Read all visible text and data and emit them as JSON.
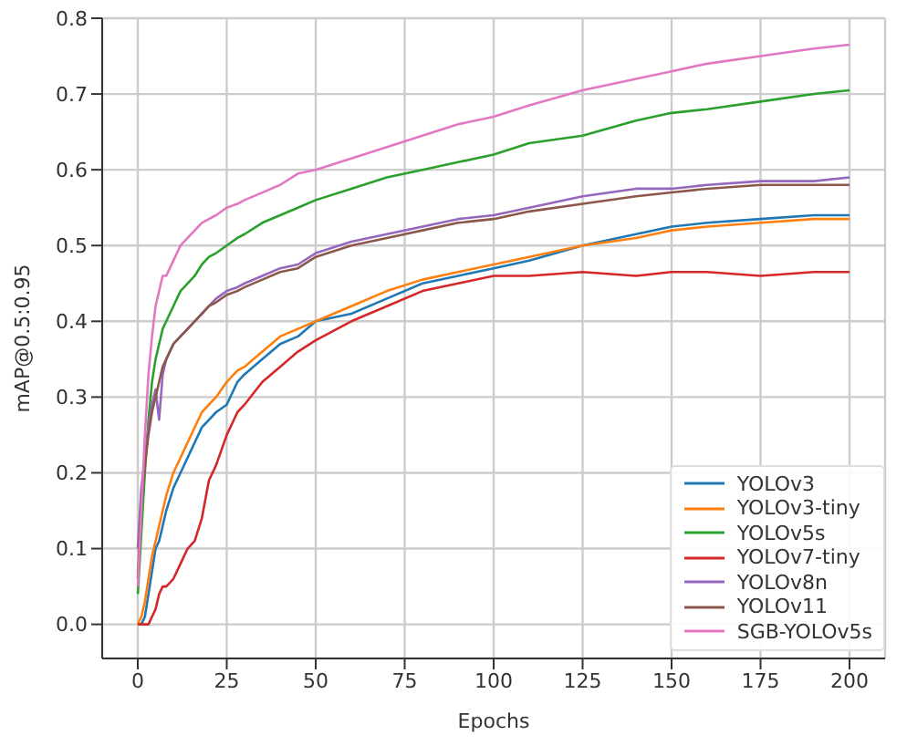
{
  "chart_data": {
    "type": "line",
    "xlabel": "Epochs",
    "ylabel": "mAP@0.5:0.95",
    "x": [
      0,
      1,
      2,
      3,
      4,
      5,
      6,
      7,
      8,
      10,
      12,
      14,
      16,
      18,
      20,
      22,
      25,
      28,
      30,
      35,
      40,
      45,
      50,
      60,
      70,
      80,
      90,
      100,
      110,
      125,
      140,
      150,
      160,
      175,
      190,
      200
    ],
    "series": [
      {
        "name": "YOLOv3",
        "color": "#1f77b4",
        "values": [
          0.0,
          0.0,
          0.01,
          0.04,
          0.07,
          0.1,
          0.11,
          0.13,
          0.15,
          0.18,
          0.2,
          0.22,
          0.24,
          0.26,
          0.27,
          0.28,
          0.29,
          0.32,
          0.33,
          0.35,
          0.37,
          0.38,
          0.4,
          0.41,
          0.43,
          0.45,
          0.46,
          0.47,
          0.48,
          0.5,
          0.515,
          0.525,
          0.53,
          0.535,
          0.54,
          0.54
        ]
      },
      {
        "name": "YOLOv3-tiny",
        "color": "#ff7f0e",
        "values": [
          0.0,
          0.01,
          0.03,
          0.06,
          0.09,
          0.11,
          0.13,
          0.15,
          0.17,
          0.2,
          0.22,
          0.24,
          0.26,
          0.28,
          0.29,
          0.3,
          0.32,
          0.335,
          0.34,
          0.36,
          0.38,
          0.39,
          0.4,
          0.42,
          0.44,
          0.455,
          0.465,
          0.475,
          0.485,
          0.5,
          0.51,
          0.52,
          0.525,
          0.53,
          0.535,
          0.535
        ]
      },
      {
        "name": "YOLOv5s",
        "color": "#2ca02c",
        "values": [
          0.04,
          0.12,
          0.2,
          0.27,
          0.32,
          0.35,
          0.37,
          0.39,
          0.4,
          0.42,
          0.44,
          0.45,
          0.46,
          0.475,
          0.485,
          0.49,
          0.5,
          0.51,
          0.515,
          0.53,
          0.54,
          0.55,
          0.56,
          0.575,
          0.59,
          0.6,
          0.61,
          0.62,
          0.635,
          0.645,
          0.665,
          0.675,
          0.68,
          0.69,
          0.7,
          0.705
        ]
      },
      {
        "name": "YOLOv7-tiny",
        "color": "#d62728",
        "values": [
          0.0,
          0.0,
          0.0,
          0.0,
          0.01,
          0.02,
          0.04,
          0.05,
          0.05,
          0.06,
          0.08,
          0.1,
          0.11,
          0.14,
          0.19,
          0.21,
          0.25,
          0.28,
          0.29,
          0.32,
          0.34,
          0.36,
          0.375,
          0.4,
          0.42,
          0.44,
          0.45,
          0.46,
          0.46,
          0.465,
          0.46,
          0.465,
          0.465,
          0.46,
          0.465,
          0.465
        ]
      },
      {
        "name": "YOLOv8n",
        "color": "#9467bd",
        "values": [
          0.1,
          0.18,
          0.22,
          0.26,
          0.29,
          0.31,
          0.27,
          0.33,
          0.35,
          0.37,
          0.38,
          0.39,
          0.4,
          0.41,
          0.42,
          0.43,
          0.44,
          0.445,
          0.45,
          0.46,
          0.47,
          0.475,
          0.49,
          0.505,
          0.515,
          0.525,
          0.535,
          0.54,
          0.55,
          0.565,
          0.575,
          0.575,
          0.58,
          0.585,
          0.585,
          0.59
        ]
      },
      {
        "name": "YOLOv11",
        "color": "#8c564b",
        "values": [
          0.06,
          0.16,
          0.21,
          0.25,
          0.28,
          0.3,
          0.32,
          0.34,
          0.35,
          0.37,
          0.38,
          0.39,
          0.4,
          0.41,
          0.42,
          0.425,
          0.435,
          0.44,
          0.445,
          0.455,
          0.465,
          0.47,
          0.485,
          0.5,
          0.51,
          0.52,
          0.53,
          0.535,
          0.545,
          0.555,
          0.565,
          0.57,
          0.575,
          0.58,
          0.58,
          0.58
        ]
      },
      {
        "name": "SGB-YOLOv5s",
        "color": "#e377c2",
        "values": [
          0.05,
          0.15,
          0.25,
          0.33,
          0.38,
          0.42,
          0.44,
          0.46,
          0.46,
          0.48,
          0.5,
          0.51,
          0.52,
          0.53,
          0.535,
          0.54,
          0.55,
          0.555,
          0.56,
          0.57,
          0.58,
          0.595,
          0.6,
          0.615,
          0.63,
          0.645,
          0.66,
          0.67,
          0.685,
          0.705,
          0.72,
          0.73,
          0.74,
          0.75,
          0.76,
          0.765
        ]
      }
    ],
    "xlim": [
      -10,
      210
    ],
    "xticks": [
      0,
      25,
      50,
      75,
      100,
      125,
      150,
      175,
      200
    ],
    "ylim": [
      -0.045,
      0.8
    ],
    "yticks": [
      {
        "value": 0,
        "label": "0.0"
      },
      0.1,
      0.2,
      0.3,
      0.4,
      0.5,
      0.6,
      0.7,
      0.8
    ],
    "grid": true,
    "legend": "bottom right",
    "marker": "none",
    "line_style": "solid"
  }
}
